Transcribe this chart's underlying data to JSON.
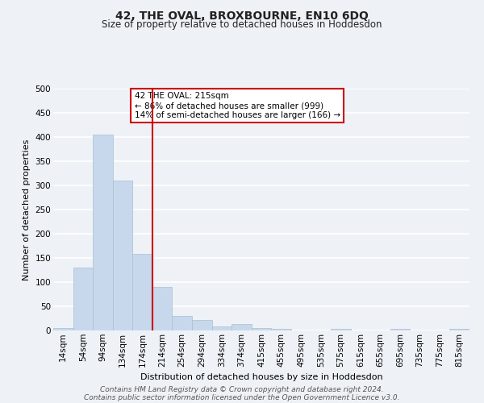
{
  "title": "42, THE OVAL, BROXBOURNE, EN10 6DQ",
  "subtitle": "Size of property relative to detached houses in Hoddesdon",
  "xlabel": "Distribution of detached houses by size in Hoddesdon",
  "ylabel": "Number of detached properties",
  "bar_color": "#c8d8ec",
  "bar_edge_color": "#aabfcf",
  "vline_color": "#cc0000",
  "vline_x_index": 5,
  "annotation_text": "42 THE OVAL: 215sqm\n← 86% of detached houses are smaller (999)\n14% of semi-detached houses are larger (166) →",
  "annotation_box_color": "#ffffff",
  "annotation_box_edge_color": "#cc0000",
  "bins": [
    "14sqm",
    "54sqm",
    "94sqm",
    "134sqm",
    "174sqm",
    "214sqm",
    "254sqm",
    "294sqm",
    "334sqm",
    "374sqm",
    "415sqm",
    "455sqm",
    "495sqm",
    "535sqm",
    "575sqm",
    "615sqm",
    "655sqm",
    "695sqm",
    "735sqm",
    "775sqm",
    "815sqm"
  ],
  "values": [
    5,
    130,
    405,
    310,
    158,
    90,
    30,
    22,
    9,
    13,
    5,
    3,
    0,
    0,
    3,
    0,
    0,
    3,
    0,
    0,
    3
  ],
  "ylim": [
    0,
    500
  ],
  "yticks": [
    0,
    50,
    100,
    150,
    200,
    250,
    300,
    350,
    400,
    450,
    500
  ],
  "footer_line1": "Contains HM Land Registry data © Crown copyright and database right 2024.",
  "footer_line2": "Contains public sector information licensed under the Open Government Licence v3.0.",
  "background_color": "#eef2f7",
  "grid_color": "#ffffff",
  "title_fontsize": 10,
  "subtitle_fontsize": 8.5,
  "axis_label_fontsize": 8,
  "tick_fontsize": 7.5,
  "footer_fontsize": 6.5
}
